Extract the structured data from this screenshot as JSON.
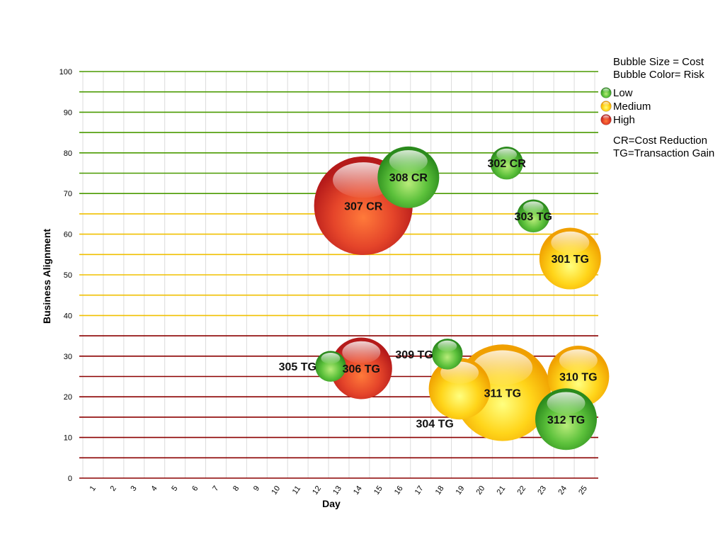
{
  "chart_data": {
    "type": "bubble",
    "xlabel": "Day",
    "ylabel": "Business Alignment",
    "ylim": [
      0,
      100
    ],
    "x_categories": [
      "1",
      "2",
      "3",
      "4",
      "5",
      "6",
      "7",
      "8",
      "9",
      "10",
      "11",
      "12",
      "13",
      "14",
      "15",
      "16",
      "17",
      "18",
      "19",
      "20",
      "21",
      "22",
      "23",
      "24",
      "25"
    ],
    "y_ticks": [
      0,
      10,
      20,
      30,
      40,
      50,
      60,
      70,
      80,
      90,
      100
    ],
    "grid": "horizontal every 5 units, vertical every day",
    "band_colors": {
      "high_band": "#8b0000",
      "medium_band": "#f0c000",
      "low_band": "#4a9a00"
    },
    "bands": [
      {
        "from": 0,
        "to": 35,
        "color_key": "high_band"
      },
      {
        "from": 40,
        "to": 65,
        "color_key": "medium_band"
      },
      {
        "from": 70,
        "to": 100,
        "color_key": "low_band"
      }
    ],
    "legend": {
      "size_note": "Bubble Size = Cost",
      "color_note": "Bubble Color= Risk",
      "risks": [
        {
          "label": "Low",
          "color": "#3fae2a"
        },
        {
          "label": "Medium",
          "color": "#f5c400"
        },
        {
          "label": "High",
          "color": "#d9261c"
        }
      ],
      "abbrev_1": "CR=Cost Reduction",
      "abbrev_2": "TG=Transaction Gain"
    },
    "points": [
      {
        "label": "301 TG",
        "x": 24.3,
        "y": 54,
        "size": 3.0,
        "risk": "Medium"
      },
      {
        "label": "302 CR",
        "x": 21.2,
        "y": 77.5,
        "size": 1.6,
        "risk": "Low"
      },
      {
        "label": "303 TG",
        "x": 22.5,
        "y": 64.5,
        "size": 1.6,
        "risk": "Low"
      },
      {
        "label": "304 TG",
        "x": 18.9,
        "y": 22,
        "size": 3.0,
        "risk": "Medium"
      },
      {
        "label": "305 TG",
        "x": 12.6,
        "y": 27.5,
        "size": 1.5,
        "risk": "Low"
      },
      {
        "label": "306 TG",
        "x": 14.1,
        "y": 27,
        "size": 3.0,
        "risk": "High"
      },
      {
        "label": "307 CR",
        "x": 14.2,
        "y": 67,
        "size": 4.8,
        "risk": "High"
      },
      {
        "label": "308 CR",
        "x": 16.4,
        "y": 74,
        "size": 3.0,
        "risk": "Low"
      },
      {
        "label": "309 TG",
        "x": 18.3,
        "y": 30.5,
        "size": 1.5,
        "risk": "Low"
      },
      {
        "label": "310 TG",
        "x": 24.7,
        "y": 25,
        "size": 3.0,
        "risk": "Medium"
      },
      {
        "label": "311 TG",
        "x": 21.0,
        "y": 21,
        "size": 4.7,
        "risk": "Medium"
      },
      {
        "label": "312 TG",
        "x": 24.1,
        "y": 14.5,
        "size": 3.0,
        "risk": "Low"
      }
    ]
  }
}
